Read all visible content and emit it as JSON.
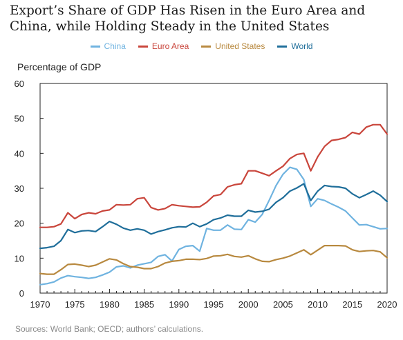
{
  "chart_data": {
    "type": "line",
    "title": "Export’s Share of GDP Has Risen in the Euro Area and China, while Holding Steady in the United States",
    "xlabel": "",
    "ylabel": "Percentage of GDP",
    "source": "Sources: World Bank; OECD; authors’ calculations.",
    "xlim": [
      1970,
      2020
    ],
    "ylim": [
      0,
      60
    ],
    "xticks": [
      1970,
      1975,
      1980,
      1985,
      1990,
      1995,
      2000,
      2005,
      2010,
      2015,
      2020
    ],
    "yticks": [
      0,
      10,
      20,
      30,
      40,
      50,
      60
    ],
    "grid": false,
    "legend_position": "top-center",
    "x": [
      1970,
      1971,
      1972,
      1973,
      1974,
      1975,
      1976,
      1977,
      1978,
      1979,
      1980,
      1981,
      1982,
      1983,
      1984,
      1985,
      1986,
      1987,
      1988,
      1989,
      1990,
      1991,
      1992,
      1993,
      1994,
      1995,
      1996,
      1997,
      1998,
      1999,
      2000,
      2001,
      2002,
      2003,
      2004,
      2005,
      2006,
      2007,
      2008,
      2009,
      2010,
      2011,
      2012,
      2013,
      2014,
      2015,
      2016,
      2017,
      2018,
      2019,
      2020
    ],
    "series": [
      {
        "name": "China",
        "color": "#6fb3e0",
        "values": [
          2.4,
          2.7,
          3.2,
          4.3,
          5.0,
          4.7,
          4.5,
          4.2,
          4.5,
          5.2,
          6.0,
          7.5,
          7.8,
          7.2,
          8.0,
          8.4,
          8.8,
          10.5,
          11.0,
          9.2,
          12.5,
          13.4,
          13.6,
          12.0,
          18.5,
          18.0,
          18.0,
          19.5,
          18.3,
          18.2,
          21.0,
          20.3,
          22.5,
          26.5,
          30.8,
          34.0,
          36.0,
          35.4,
          32.5,
          24.8,
          27.0,
          26.5,
          25.5,
          24.6,
          23.5,
          21.5,
          19.5,
          19.6,
          19.0,
          18.4,
          18.5
        ]
      },
      {
        "name": "Euro Area",
        "color": "#c9453b",
        "values": [
          18.8,
          18.8,
          19.0,
          19.8,
          23.0,
          21.3,
          22.5,
          23.0,
          22.7,
          23.5,
          23.8,
          25.3,
          25.2,
          25.3,
          27.0,
          27.3,
          24.5,
          23.8,
          24.2,
          25.3,
          25.0,
          24.8,
          24.6,
          24.7,
          26.0,
          27.8,
          28.2,
          30.4,
          31.0,
          31.3,
          35.0,
          35.0,
          34.3,
          33.6,
          35.0,
          36.3,
          38.5,
          39.7,
          40.0,
          35.0,
          39.0,
          42.0,
          43.7,
          44.0,
          44.5,
          46.0,
          45.5,
          47.5,
          48.2,
          48.2,
          45.5
        ]
      },
      {
        "name": "United States",
        "color": "#b8893f",
        "values": [
          5.6,
          5.4,
          5.4,
          6.7,
          8.2,
          8.3,
          8.0,
          7.6,
          8.0,
          8.9,
          9.8,
          9.5,
          8.4,
          7.6,
          7.4,
          7.0,
          7.0,
          7.6,
          8.6,
          9.1,
          9.3,
          9.7,
          9.7,
          9.6,
          9.9,
          10.6,
          10.7,
          11.1,
          10.5,
          10.3,
          10.7,
          9.8,
          9.1,
          9.0,
          9.6,
          10.0,
          10.6,
          11.5,
          12.4,
          11.0,
          12.3,
          13.6,
          13.6,
          13.6,
          13.5,
          12.4,
          11.9,
          12.1,
          12.2,
          11.8,
          10.1
        ]
      },
      {
        "name": "World",
        "color": "#1f6e9a",
        "values": [
          12.8,
          13.0,
          13.4,
          15.0,
          18.2,
          17.3,
          17.8,
          17.9,
          17.6,
          19.0,
          20.5,
          19.7,
          18.6,
          18.0,
          18.4,
          18.0,
          16.9,
          17.6,
          18.1,
          18.7,
          19.0,
          18.9,
          20.0,
          19.0,
          19.8,
          21.0,
          21.5,
          22.3,
          22.0,
          22.0,
          23.7,
          23.2,
          23.4,
          24.0,
          26.0,
          27.3,
          29.2,
          30.1,
          31.3,
          26.5,
          29.2,
          30.8,
          30.5,
          30.4,
          30.0,
          28.4,
          27.3,
          28.2,
          29.2,
          28.0,
          26.2
        ]
      }
    ]
  }
}
